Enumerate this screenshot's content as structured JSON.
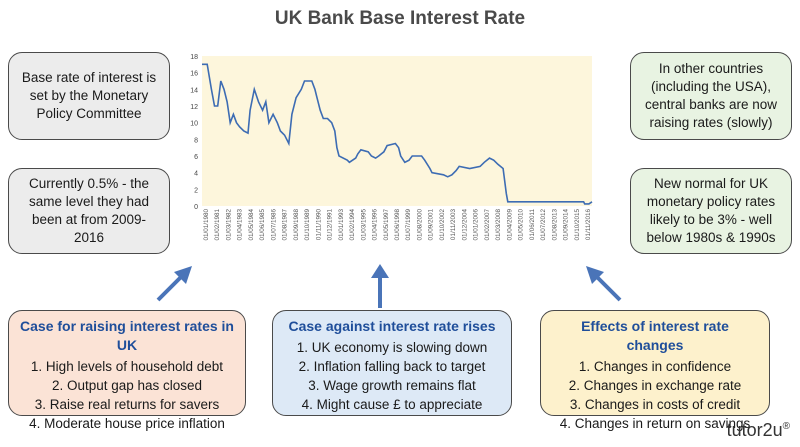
{
  "title": "UK Bank Base Interest Rate",
  "boxes": {
    "top_left": "Base rate of interest is set by the Monetary Policy Committee",
    "mid_left": "Currently 0.5% - the same level they had been at from 2009-2016",
    "top_right": "In other countries (including the USA), central banks are now raising rates (slowly)",
    "mid_right": "New normal for UK monetary policy rates likely to be 3% - well below 1980s & 1990s"
  },
  "panels": {
    "left": {
      "heading": "Case for raising interest rates in UK",
      "items": [
        "1.   High levels of household debt",
        "2.   Output gap has closed",
        "3.   Raise real returns for savers",
        "4.   Moderate house price inflation"
      ]
    },
    "middle": {
      "heading": "Case against interest rate rises",
      "items": [
        "1.   UK economy is slowing down",
        "2.   Inflation falling back to target",
        "3.   Wage growth remains flat",
        "4.   Might cause £ to appreciate"
      ]
    },
    "right": {
      "heading": "Effects of interest rate changes",
      "items": [
        "1.   Changes in confidence",
        "2.   Changes in exchange rate",
        "3.   Changes in costs of credit",
        "4.   Changes in return on savings"
      ]
    }
  },
  "logo": {
    "text": "tutor2u",
    "mark": "®"
  },
  "colors": {
    "line": "#3d6cb3",
    "plot_bg": "#fdf6dc",
    "arrow": "#4a74b8",
    "heading": "#1f4e9a"
  },
  "chart_data": {
    "type": "line",
    "title": "UK Bank Base Interest Rate",
    "xlabel": "",
    "ylabel": "",
    "ylim": [
      0,
      18
    ],
    "yticks": [
      0,
      2,
      4,
      6,
      8,
      10,
      12,
      14,
      16,
      18
    ],
    "grid": false,
    "xticks": [
      "01/01/1980",
      "01/02/1981",
      "01/03/1982",
      "01/04/1983",
      "01/05/1984",
      "01/06/1985",
      "01/07/1986",
      "01/08/1987",
      "01/09/1988",
      "01/10/1989",
      "01/11/1990",
      "01/12/1991",
      "01/01/1993",
      "01/02/1994",
      "01/03/1995",
      "01/04/1996",
      "01/05/1997",
      "01/06/1998",
      "01/07/1999",
      "01/08/2000",
      "01/09/2001",
      "01/10/2002",
      "01/11/2003",
      "01/12/2004",
      "01/01/2006",
      "01/02/2007",
      "01/03/2008",
      "01/04/2009",
      "01/05/2010",
      "01/06/2011",
      "01/07/2012",
      "01/08/2013",
      "01/09/2014",
      "01/10/2015",
      "01/11/2016"
    ],
    "series": [
      {
        "points": [
          [
            1980.0,
            17
          ],
          [
            1980.5,
            17
          ],
          [
            1980.9,
            14
          ],
          [
            1981.2,
            12
          ],
          [
            1981.5,
            12
          ],
          [
            1981.8,
            15
          ],
          [
            1982.1,
            14
          ],
          [
            1982.4,
            12.5
          ],
          [
            1982.7,
            10
          ],
          [
            1983.0,
            11
          ],
          [
            1983.3,
            10
          ],
          [
            1983.6,
            9.5
          ],
          [
            1984.0,
            9
          ],
          [
            1984.4,
            8.75
          ],
          [
            1984.6,
            11.5
          ],
          [
            1985.0,
            14
          ],
          [
            1985.4,
            12.5
          ],
          [
            1985.8,
            11.5
          ],
          [
            1986.1,
            12.5
          ],
          [
            1986.4,
            10
          ],
          [
            1986.8,
            11
          ],
          [
            1987.2,
            10
          ],
          [
            1987.5,
            9
          ],
          [
            1987.9,
            8.5
          ],
          [
            1988.3,
            7.5
          ],
          [
            1988.6,
            11
          ],
          [
            1989.0,
            13
          ],
          [
            1989.5,
            14
          ],
          [
            1989.8,
            15
          ],
          [
            1990.5,
            15
          ],
          [
            1990.8,
            14
          ],
          [
            1991.0,
            13
          ],
          [
            1991.3,
            11.5
          ],
          [
            1991.6,
            10.5
          ],
          [
            1992.0,
            10.5
          ],
          [
            1992.4,
            10
          ],
          [
            1992.7,
            9
          ],
          [
            1992.9,
            7
          ],
          [
            1993.1,
            6
          ],
          [
            1993.9,
            5.5
          ],
          [
            1994.1,
            5.25
          ],
          [
            1994.7,
            5.75
          ],
          [
            1994.9,
            6.25
          ],
          [
            1995.2,
            6.75
          ],
          [
            1995.9,
            6.5
          ],
          [
            1996.2,
            6
          ],
          [
            1996.6,
            5.75
          ],
          [
            1996.9,
            6
          ],
          [
            1997.4,
            6.5
          ],
          [
            1997.7,
            7.25
          ],
          [
            1998.5,
            7.5
          ],
          [
            1998.8,
            7
          ],
          [
            1999.0,
            6
          ],
          [
            1999.4,
            5.25
          ],
          [
            1999.8,
            5.5
          ],
          [
            2000.1,
            6
          ],
          [
            2001.0,
            6
          ],
          [
            2001.3,
            5.5
          ],
          [
            2001.8,
            4.5
          ],
          [
            2002.0,
            4
          ],
          [
            2003.1,
            3.75
          ],
          [
            2003.5,
            3.5
          ],
          [
            2003.9,
            3.75
          ],
          [
            2004.3,
            4.25
          ],
          [
            2004.6,
            4.75
          ],
          [
            2005.6,
            4.5
          ],
          [
            2006.6,
            4.75
          ],
          [
            2007.0,
            5.25
          ],
          [
            2007.5,
            5.75
          ],
          [
            2007.9,
            5.5
          ],
          [
            2008.3,
            5
          ],
          [
            2008.8,
            4.5
          ],
          [
            2008.95,
            3
          ],
          [
            2009.1,
            1.5
          ],
          [
            2009.25,
            0.5
          ],
          [
            2016.5,
            0.5
          ],
          [
            2016.6,
            0.25
          ],
          [
            2017.0,
            0.25
          ],
          [
            2017.3,
            0.5
          ]
        ]
      }
    ]
  }
}
